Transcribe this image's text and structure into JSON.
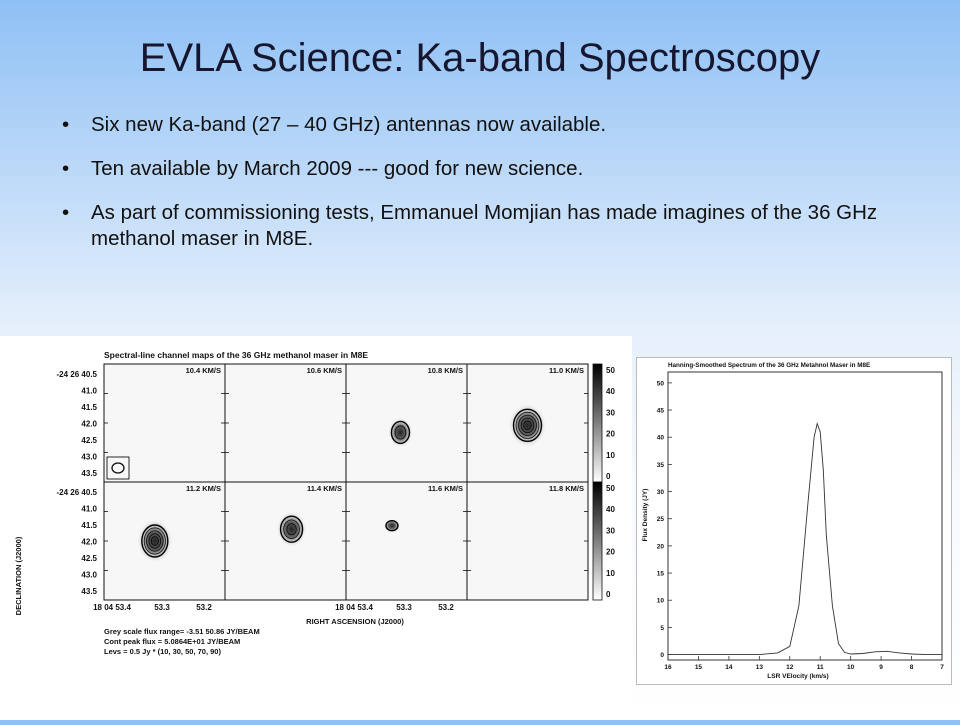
{
  "slide": {
    "title": "EVLA Science: Ka-band Spectroscopy",
    "bullets": [
      "Six new Ka-band (27 – 40 GHz) antennas now available.",
      "Ten available by March 2009 --- good for new science.",
      "As part of commissioning tests, Emmanuel Momjian has made imagines of the 36 GHz methanol maser  in M8E."
    ]
  },
  "channel_maps": {
    "title": "Spectral-line channel maps of the 36 GHz methanol maser in M8E",
    "ylabel": "DECLINATION (J2000)",
    "xlabel": "RIGHT ASCENSION (J2000)",
    "y_ticks": [
      "-24 26 40.5",
      "41.0",
      "41.5",
      "42.0",
      "42.5",
      "43.0",
      "43.5"
    ],
    "x_ticks": [
      "18 04 53.4",
      "53.3",
      "53.2"
    ],
    "velocities": [
      "10.4 KM/S",
      "10.6 KM/S",
      "10.8 KM/S",
      "11.0 KM/S",
      "11.2 KM/S",
      "11.4 KM/S",
      "11.6 KM/S",
      "11.8 KM/S"
    ],
    "wedge_ticks": [
      "50",
      "40",
      "30",
      "20",
      "10",
      "0"
    ],
    "footer": [
      "Grey scale flux range= -3.51 50.86 JY/BEAM",
      "Cont peak flux =  5.0864E+01 JY/BEAM",
      "Levs = 0.5 Jy * (10, 30, 50, 70, 90)"
    ]
  },
  "chart_data": {
    "type": "line",
    "title": "Hanning-Smoothed Spectrum of the 36 GHz Metahnol Maser in M8E",
    "xlabel": "LSR VElocity (km/s)",
    "ylabel": "Flux Density (JY)",
    "xlim": [
      16,
      7
    ],
    "ylim": [
      -1,
      52
    ],
    "x_ticks": [
      "16",
      "15",
      "14",
      "13",
      "12",
      "11",
      "10",
      "9",
      "8",
      "7"
    ],
    "y_ticks": [
      "50",
      "45",
      "40",
      "35",
      "30",
      "25",
      "20",
      "15",
      "10",
      "5",
      "0"
    ],
    "series": [
      {
        "x": [
          16,
          15,
          14,
          13,
          12.4,
          12.0,
          11.7,
          11.4,
          11.2,
          11.1,
          11.0,
          10.9,
          10.8,
          10.6,
          10.4,
          10.2,
          10.0,
          9.6,
          9.2,
          8.8,
          8.4,
          8.0,
          7.5,
          7
        ],
        "y": [
          0,
          0,
          0,
          0,
          0.3,
          1.5,
          9,
          28,
          40,
          42.5,
          41,
          34,
          22,
          9,
          2,
          0.4,
          0.1,
          0.2,
          0.5,
          0.6,
          0.3,
          0.1,
          0,
          0
        ]
      }
    ]
  }
}
